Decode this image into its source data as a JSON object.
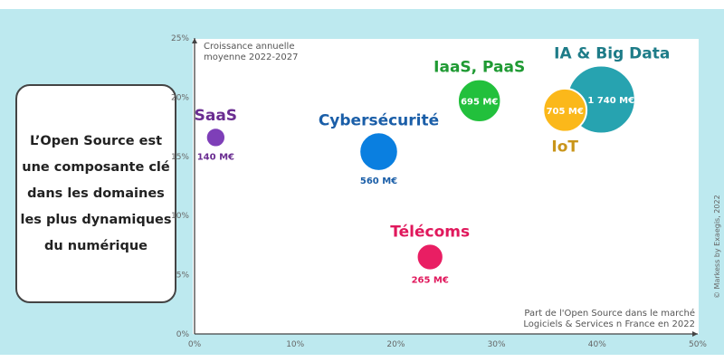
{
  "callout_text": "L’Open Source est une composante clé dans les domaines les plus dynamiques du numérique",
  "credit": "© Markess by Exaegis, 2022",
  "chart_data": {
    "type": "scatter",
    "subtype": "bubble",
    "ylabel": "Croissance annuelle moyenne 2022-2027",
    "ylabel_lines": [
      "Croissance annuelle",
      "moyenne 2022-2027"
    ],
    "xlabel": "Part de l'Open Source dans le marché Logiciels & Services n France en 2022",
    "xlabel_lines": [
      "Part de l'Open Source dans le marché",
      "Logiciels & Services n France en 2022"
    ],
    "xlim": [
      0,
      50
    ],
    "ylim": [
      0,
      25
    ],
    "xticks": [
      "0%",
      "10%",
      "20%",
      "30%",
      "40%",
      "50%"
    ],
    "yticks": [
      "0%",
      "5%",
      "10%",
      "15%",
      "20%",
      "25%"
    ],
    "grid": false,
    "points": [
      {
        "name": "SaaS",
        "x": 2.1,
        "y": 16.6,
        "size": 140,
        "value_label": "140 M€",
        "color": "#7e3fb8",
        "label_color": "#6a2d91",
        "value_color": "#6a2d91",
        "label_pos": "above",
        "value_pos": "below"
      },
      {
        "name": "Cybersécurité",
        "x": 18.3,
        "y": 15.4,
        "size": 560,
        "value_label": "560 M€",
        "color": "#0a7fe0",
        "label_color": "#1a5ea8",
        "value_color": "#1a5ea8",
        "label_pos": "above",
        "value_pos": "below"
      },
      {
        "name": "Télécoms",
        "x": 23.4,
        "y": 6.5,
        "size": 265,
        "value_label": "265 M€",
        "color": "#e91e63",
        "label_color": "#e0185c",
        "value_color": "#e0185c",
        "label_pos": "above",
        "value_pos": "below"
      },
      {
        "name": "IaaS, PaaS",
        "x": 28.3,
        "y": 19.7,
        "size": 695,
        "value_label": "695 M€",
        "color": "#22c03c",
        "label_color": "#1f9a33",
        "value_color": "#ffffff",
        "label_pos": "above",
        "value_pos": "inside"
      },
      {
        "name": "IA & Big Data",
        "x": 40.4,
        "y": 19.8,
        "size": 1740,
        "value_label": "1 740 M€",
        "color": "#27a3b0",
        "label_color": "#1e7c88",
        "value_color": "#ffffff",
        "label_pos": "above",
        "value_pos": "inside-right"
      },
      {
        "name": "IoT",
        "x": 36.8,
        "y": 18.9,
        "size": 705,
        "value_label": "705 M€",
        "color": "#fbb81a",
        "label_color": "#c9951a",
        "value_color": "#ffffff",
        "label_pos": "below",
        "value_pos": "inside"
      }
    ]
  }
}
